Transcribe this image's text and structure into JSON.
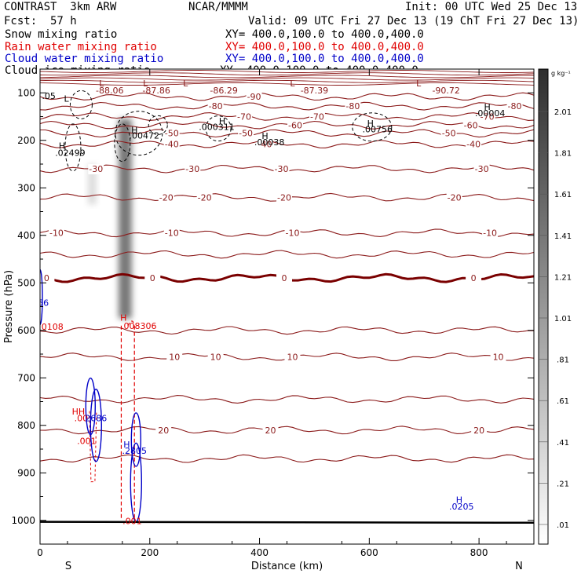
{
  "header": {
    "model": "CONTRAST  3km ARW",
    "org": "NCAR/MMMM",
    "init": "Init: 00 UTC Wed 25 Dec 13",
    "fcst_label": "Fcst:",
    "fcst_value": "57 h",
    "valid": "Valid: 09 UTC Fri 27 Dec 13 (19 ChT Fri 27 Dec 13)"
  },
  "legend": [
    {
      "name": "Snow mixing ratio",
      "xy": "XY= 400.0,100.0 to 400.0,400.0",
      "color": "#000000"
    },
    {
      "name": "Rain water mixing ratio",
      "xy": "XY= 400.0,100.0 to 400.0,400.0",
      "color": "#e00000"
    },
    {
      "name": "Cloud water mixing ratio",
      "xy": "XY= 400.0,100.0 to 400.0,400.0",
      "color": "#0000c8"
    },
    {
      "name": "Cloud ice mixing ratio",
      "xy": "XY= 400.0,100.0 to 400.0,400.0",
      "color": "#000000"
    }
  ],
  "colors": {
    "temp": "#8b1a1a",
    "zero": "#7a0000",
    "rain": "#e00000",
    "cloud": "#0000c8",
    "ice": "#000000"
  },
  "chart_data": {
    "type": "cross-section",
    "xlabel": "Distance (km)",
    "ylabel": "Pressure (hPa)",
    "xlim": [
      0,
      900
    ],
    "ylim": [
      1050,
      50
    ],
    "xticks": [
      0,
      200,
      400,
      600,
      800
    ],
    "yticks": [
      100,
      200,
      300,
      400,
      500,
      600,
      700,
      800,
      900,
      1000
    ],
    "end_labels": {
      "left": "S",
      "right": "N"
    },
    "temperature_isotherms": [
      {
        "value": -90,
        "p": 108,
        "labels": [
          {
            "x": 390,
            "text": "-90"
          }
        ]
      },
      {
        "value": -80,
        "p": 128,
        "labels": [
          {
            "x": 320,
            "text": "-80"
          },
          {
            "x": 570,
            "text": "-80"
          },
          {
            "x": 865,
            "text": "-80"
          }
        ]
      },
      {
        "value": -70,
        "p": 150,
        "labels": [
          {
            "x": 372,
            "text": "-70"
          },
          {
            "x": 505,
            "text": "-70"
          },
          {
            "x": 815,
            "text": "-70"
          }
        ]
      },
      {
        "value": -60,
        "p": 168,
        "labels": [
          {
            "x": 465,
            "text": "-60"
          },
          {
            "x": 785,
            "text": "-60"
          }
        ]
      },
      {
        "value": -50,
        "p": 185,
        "labels": [
          {
            "x": 240,
            "text": "-50"
          },
          {
            "x": 375,
            "text": "-50"
          },
          {
            "x": 745,
            "text": "-50"
          }
        ]
      },
      {
        "value": -40,
        "p": 208,
        "labels": [
          {
            "x": 240,
            "text": "-40"
          },
          {
            "x": 410,
            "text": "-40"
          },
          {
            "x": 790,
            "text": "-40"
          }
        ]
      },
      {
        "value": -30,
        "p": 260,
        "labels": [
          {
            "x": 102,
            "text": "-30"
          },
          {
            "x": 278,
            "text": "-30"
          },
          {
            "x": 440,
            "text": "-30"
          },
          {
            "x": 805,
            "text": "-30"
          }
        ]
      },
      {
        "value": -20,
        "p": 320,
        "labels": [
          {
            "x": 230,
            "text": "-20"
          },
          {
            "x": 300,
            "text": "-20"
          },
          {
            "x": 445,
            "text": "-20"
          },
          {
            "x": 755,
            "text": "-20"
          }
        ]
      },
      {
        "value": -10,
        "p": 395,
        "labels": [
          {
            "x": 30,
            "text": "-10"
          },
          {
            "x": 240,
            "text": "-10"
          },
          {
            "x": 460,
            "text": "-10"
          },
          {
            "x": 820,
            "text": "-10"
          }
        ]
      },
      {
        "value": -5,
        "p": 440,
        "labels": []
      },
      {
        "value": 0,
        "p": 490,
        "labels": [
          {
            "x": 12,
            "text": "0"
          },
          {
            "x": 205,
            "text": "0"
          },
          {
            "x": 445,
            "text": "0"
          },
          {
            "x": 790,
            "text": "0"
          }
        ]
      },
      {
        "value": 5,
        "p": 600,
        "labels": []
      },
      {
        "value": 10,
        "p": 656,
        "labels": [
          {
            "x": 245,
            "text": "10"
          },
          {
            "x": 320,
            "text": "10"
          },
          {
            "x": 460,
            "text": "10"
          },
          {
            "x": 835,
            "text": "10"
          }
        ]
      },
      {
        "value": 15,
        "p": 745,
        "labels": []
      },
      {
        "value": 20,
        "p": 810,
        "labels": [
          {
            "x": 225,
            "text": "20"
          },
          {
            "x": 420,
            "text": "20"
          },
          {
            "x": 800,
            "text": "20"
          }
        ]
      },
      {
        "value": 25,
        "p": 870,
        "labels": []
      }
    ],
    "top_isotherm_labels": [
      {
        "x": 112,
        "text": "L"
      },
      {
        "x": 192,
        "text": "L"
      },
      {
        "x": 265,
        "text": "L"
      },
      {
        "x": 460,
        "text": "L"
      },
      {
        "x": 690,
        "text": "L"
      },
      {
        "x": 127,
        "text": "-88.06"
      },
      {
        "x": 212,
        "text": "-87.86"
      },
      {
        "x": 335,
        "text": "-86.29"
      },
      {
        "x": 500,
        "text": "-87.39"
      },
      {
        "x": 740,
        "text": "-90.72"
      }
    ],
    "extrema": [
      {
        "x": 48,
        "p": 119,
        "text": "L",
        "color": "ice"
      },
      {
        "x": 16,
        "p": 113,
        "text": ".05",
        "color": "ice"
      },
      {
        "x": 172,
        "p": 185,
        "text": "H",
        "color": "ice"
      },
      {
        "x": 190,
        "p": 196,
        "text": ".00472",
        "color": "ice"
      },
      {
        "x": 40,
        "p": 218,
        "text": "H",
        "color": "ice"
      },
      {
        "x": 55,
        "p": 233,
        "text": ".02499",
        "color": "ice"
      },
      {
        "x": 332,
        "p": 166,
        "text": "H",
        "color": "ice"
      },
      {
        "x": 322,
        "p": 178,
        "text": ".000311",
        "color": "ice"
      },
      {
        "x": 410,
        "p": 197,
        "text": "H",
        "color": "ice"
      },
      {
        "x": 418,
        "p": 210,
        "text": ".00038",
        "color": "ice"
      },
      {
        "x": 602,
        "p": 171,
        "text": "H",
        "color": "ice"
      },
      {
        "x": 615,
        "p": 183,
        "text": ".00756",
        "color": "ice"
      },
      {
        "x": 815,
        "p": 136,
        "text": "H",
        "color": "ice"
      },
      {
        "x": 820,
        "p": 149,
        "text": ".00004",
        "color": "ice"
      },
      {
        "x": 6,
        "p": 548,
        "text": "56",
        "color": "cloud"
      },
      {
        "x": 20,
        "p": 599,
        "text": ".0108",
        "color": "rain"
      },
      {
        "x": 152,
        "p": 580,
        "text": "H",
        "color": "rain"
      },
      {
        "x": 180,
        "p": 597,
        "text": ".008306",
        "color": "rain"
      },
      {
        "x": 70,
        "p": 777,
        "text": "HH",
        "color": "rain"
      },
      {
        "x": 75,
        "p": 791,
        "text": ".00",
        "color": "rain"
      },
      {
        "x": 102,
        "p": 791,
        "text": "2686",
        "color": "cloud"
      },
      {
        "x": 85,
        "p": 839,
        "text": ".001",
        "color": "rain"
      },
      {
        "x": 158,
        "p": 847,
        "text": "H",
        "color": "cloud"
      },
      {
        "x": 172,
        "p": 860,
        "text": ".2805",
        "color": "cloud"
      },
      {
        "x": 168,
        "p": 1008,
        "text": ".001",
        "color": "rain"
      },
      {
        "x": 764,
        "p": 963,
        "text": "H",
        "color": "cloud"
      },
      {
        "x": 768,
        "p": 977,
        "text": ".0205",
        "color": "cloud"
      }
    ],
    "snow_shading": [
      {
        "x": 155,
        "w": 24,
        "p0": 155,
        "p1": 575,
        "intensity": 0.75
      },
      {
        "x": 95,
        "w": 15,
        "p0": 250,
        "p1": 335,
        "intensity": 0.2
      }
    ],
    "colorbar": {
      "unit": "g kg⁻¹",
      "ticks": [
        "2.01",
        "1.81",
        "1.61",
        "1.41",
        "1.21",
        "1.01",
        ".81",
        ".61",
        ".41",
        ".21",
        ".01"
      ]
    }
  }
}
